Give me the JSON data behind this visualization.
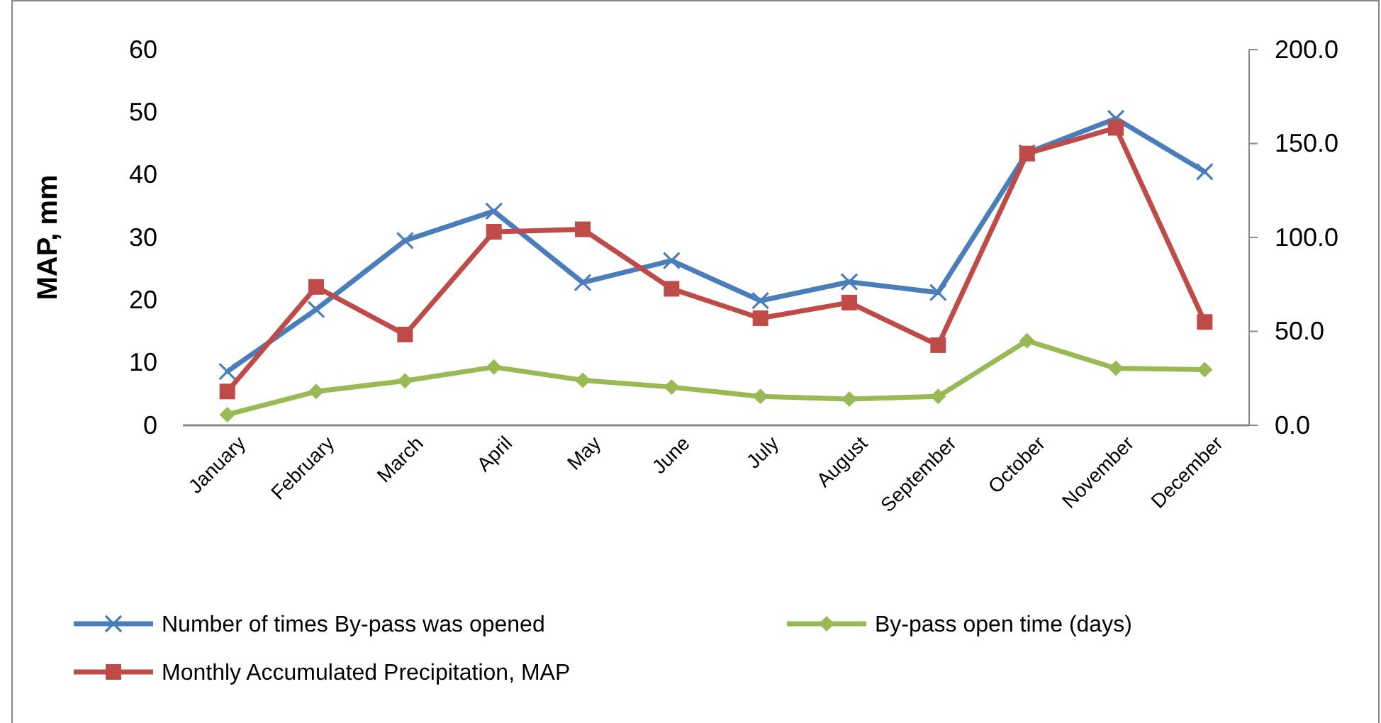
{
  "chart_data": {
    "type": "line",
    "ylabel": "MAP, mm",
    "categories": [
      "January",
      "February",
      "March",
      "April",
      "May",
      "June",
      "July",
      "August",
      "September",
      "October",
      "November",
      "December"
    ],
    "series": [
      {
        "name": "Number of times By-pass was opened",
        "color": "#4a7ebb",
        "marker": "cross",
        "values": [
          8.6,
          18.5,
          29.5,
          34.2,
          22.8,
          26.3,
          19.9,
          22.9,
          21.2,
          43.5,
          49.0,
          40.5
        ]
      },
      {
        "name": "By-pass open time (days)",
        "color": "#98b954",
        "marker": "diamond",
        "values": [
          1.7,
          5.4,
          7.1,
          9.3,
          7.2,
          6.1,
          4.6,
          4.2,
          4.6,
          13.5,
          9.1,
          8.9
        ]
      },
      {
        "name": "Monthly Accumulated Precipitation, MAP",
        "color": "#be4b48",
        "marker": "square",
        "values": [
          5.4,
          22.1,
          14.5,
          30.9,
          31.3,
          21.8,
          17.1,
          19.6,
          12.8,
          43.4,
          47.5,
          16.5
        ]
      }
    ],
    "ylim": [
      0,
      60
    ],
    "yticks": [
      0,
      10,
      20,
      30,
      40,
      50,
      60
    ],
    "y2lim": [
      0,
      200
    ],
    "y2ticks": [
      {
        "value": 0,
        "label": "0.0"
      },
      {
        "value": 50,
        "label": "50.0"
      },
      {
        "value": 100,
        "label": "100.0"
      },
      {
        "value": 150,
        "label": "150.0"
      },
      {
        "value": 200,
        "label": "200.0"
      }
    ],
    "legend": "bottom",
    "grid": false,
    "line_style": "solid"
  }
}
